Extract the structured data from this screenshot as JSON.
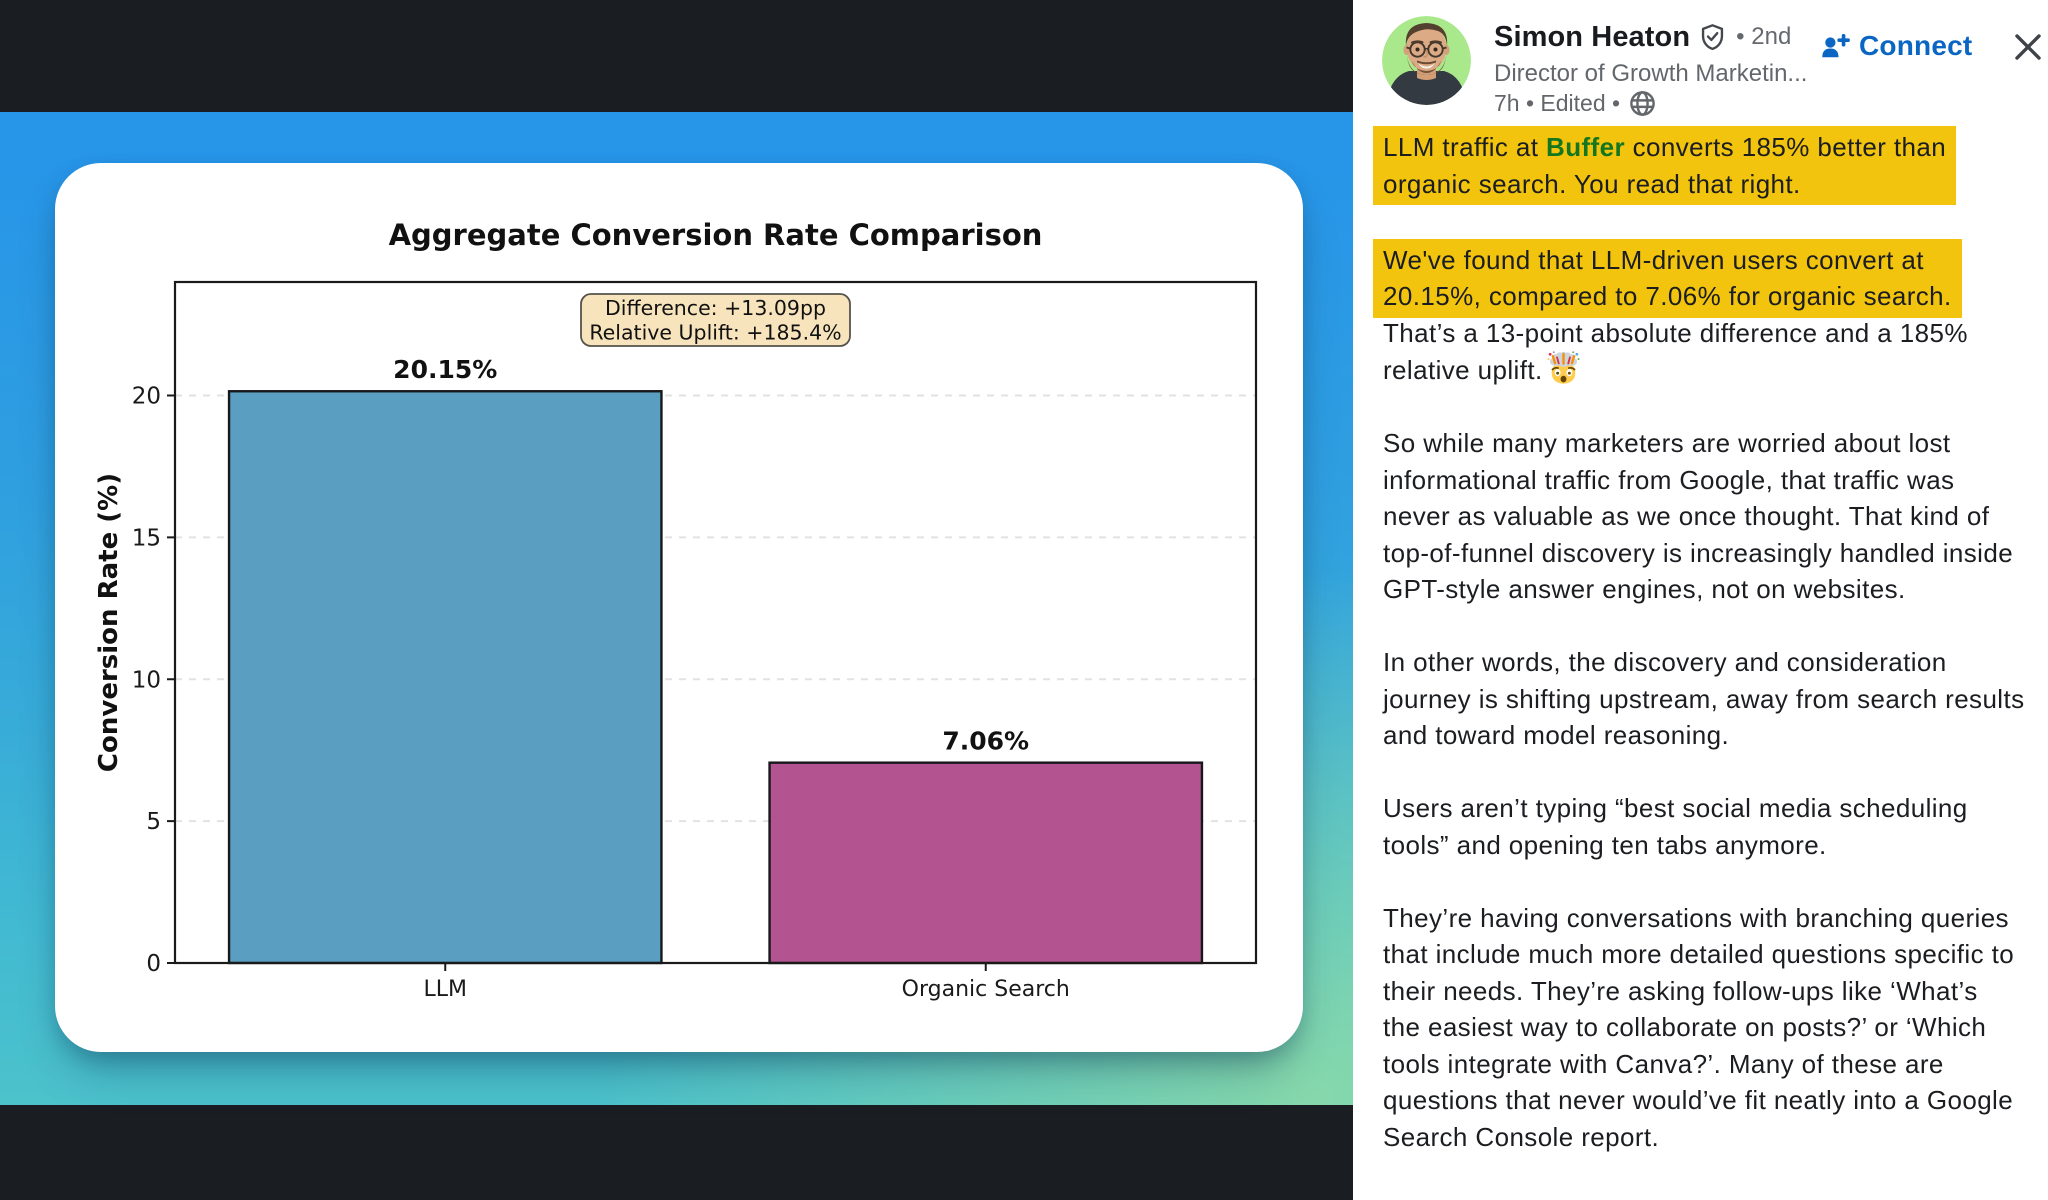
{
  "chart_data": {
    "type": "bar",
    "title": "Aggregate Conversion Rate Comparison",
    "ylabel": "Conversion Rate (%)",
    "categories": [
      "LLM",
      "Organic Search"
    ],
    "values": [
      20.15,
      7.06
    ],
    "value_labels": [
      "20.15%",
      "7.06%"
    ],
    "bar_colors": [
      "#5a9ec1",
      "#b3538f"
    ],
    "bar_edge_color": "#16181c",
    "ylim": [
      0,
      24
    ],
    "yticks": [
      0,
      5,
      10,
      15,
      20
    ],
    "grid": "horizontal-dashed",
    "legend": "none",
    "annotation": {
      "lines": [
        "Difference: +13.09pp",
        "Relative Uplift: +185.4%"
      ]
    }
  },
  "panel": {
    "author": {
      "name": "Simon Heaton",
      "degree": "• 2nd",
      "headline": "Director of Growth Marketin...",
      "meta": "7h • Edited •"
    },
    "actions": {
      "connect": "Connect"
    },
    "post": {
      "p1": {
        "pre": "LLM traffic at ",
        "brand": "Buffer",
        "post": " converts 185% better than\norganic search. You read that right."
      },
      "p2": {
        "highlight": "We've found that LLM-driven users convert at\n20.15%, compared to 7.06% for organic search.",
        "rest": "That’s a 13-point absolute difference and a 185%\nrelative uplift.",
        "emoji": "exploding-head"
      },
      "p3": "So while many marketers are worried about lost\ninformational traffic from Google, that traffic was\nnever as valuable as we once thought. That kind of\ntop-of-funnel discovery is increasingly handled inside\nGPT-style answer engines, not on websites.",
      "p4": "In other words, the discovery and consideration\njourney is shifting upstream, away from search results\nand toward model reasoning.",
      "p5": "Users aren’t typing “best social media scheduling\ntools” and opening ten tabs anymore.",
      "p6": "They’re having conversations with branching queries\nthat include much more detailed questions specific to\ntheir needs. They’re asking follow-ups like ‘What’s\nthe easiest way to collaborate on posts?’ or ‘Which\ntools integrate with Canva?’. Many of these are\nquestions that never would’ve fit neatly into a Google\nSearch Console report."
    }
  },
  "colors": {
    "viewer_bg": "#1a1e22",
    "highlight": "#f2c40e",
    "brand_green": "#15761f",
    "link_blue": "#0a66c2",
    "text_primary": "#1b1d21",
    "text_secondary": "#63676c"
  }
}
